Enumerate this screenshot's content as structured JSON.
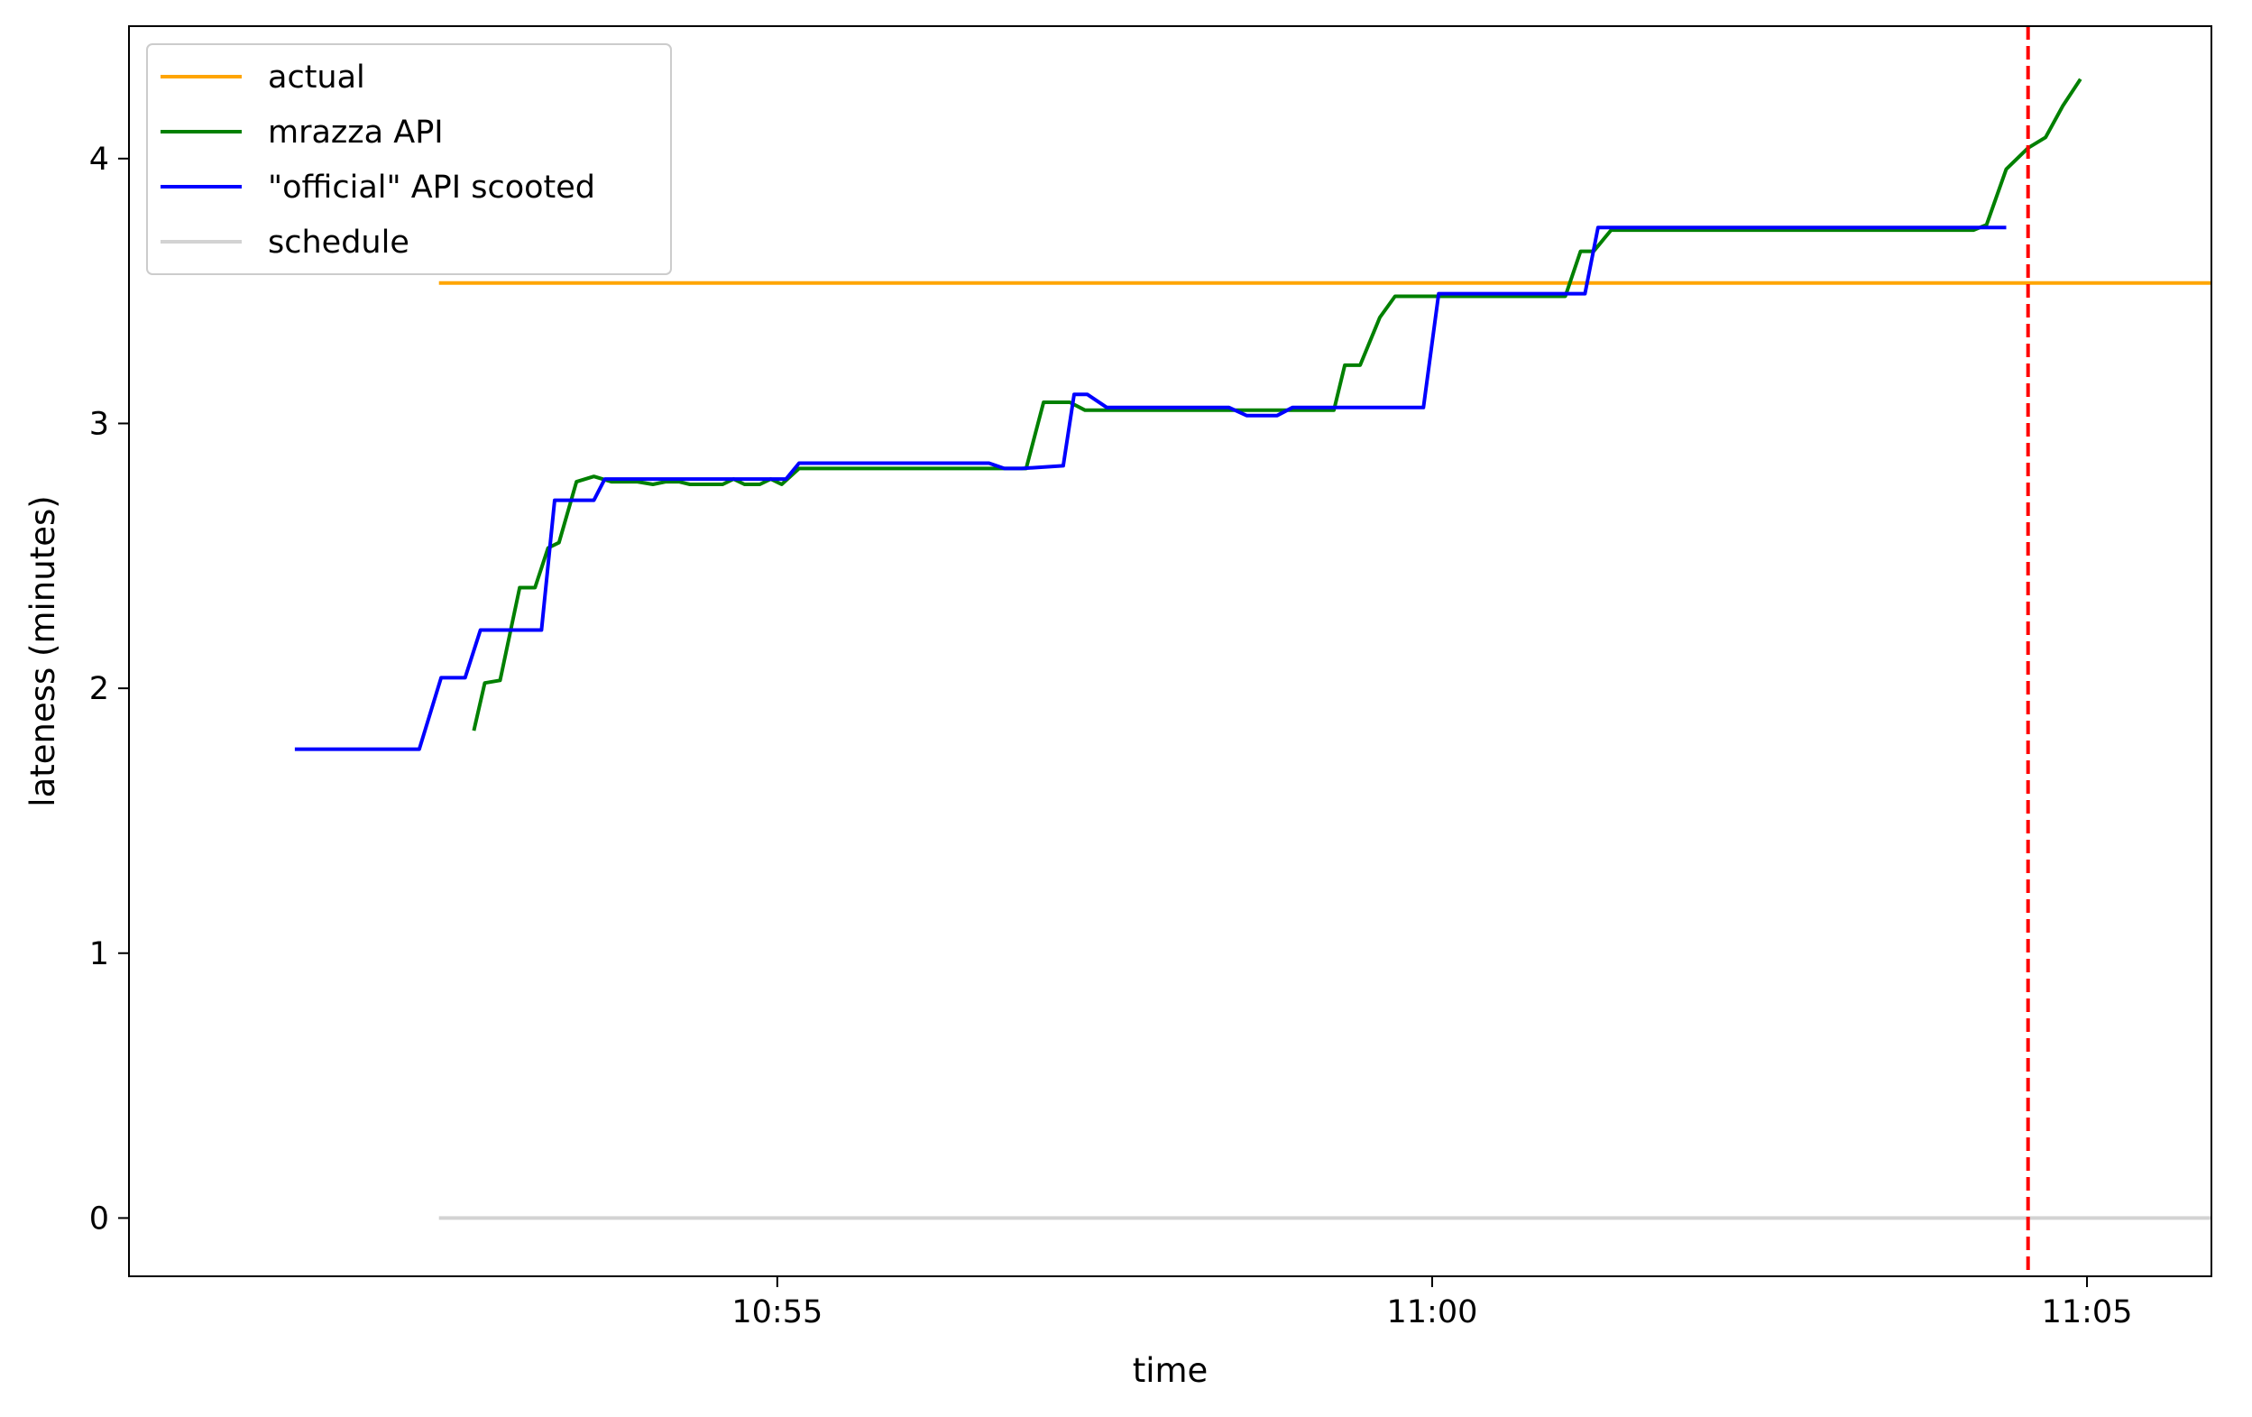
{
  "chart_data": {
    "type": "line",
    "title": "",
    "xlabel": "time",
    "ylabel": "lateness (minutes)",
    "x_unit": "clock time (HH:MM:SS)",
    "xlim": [
      "10:50:03",
      "11:05:57"
    ],
    "ylim": [
      -0.22,
      4.5
    ],
    "x_ticks": [
      {
        "value": "10:55:00",
        "label": "10:55"
      },
      {
        "value": "11:00:00",
        "label": "11:00"
      },
      {
        "value": "11:05:00",
        "label": "11:05"
      }
    ],
    "y_ticks": [
      {
        "value": 0,
        "label": "0"
      },
      {
        "value": 1,
        "label": "1"
      },
      {
        "value": 2,
        "label": "2"
      },
      {
        "value": 3,
        "label": "3"
      },
      {
        "value": 4,
        "label": "4"
      }
    ],
    "grid": false,
    "legend_position": "top-left",
    "vertical_line": {
      "x": "11:04:33",
      "color": "#ff0000",
      "style": "dashed"
    },
    "series": [
      {
        "name": "actual",
        "color": "#ffa500",
        "points": [
          [
            "10:52:25",
            3.53
          ],
          [
            "11:05:57",
            3.53
          ]
        ]
      },
      {
        "name": "mrazza API",
        "color": "#008000",
        "points": [
          [
            "10:52:41",
            1.84
          ],
          [
            "10:52:46",
            2.02
          ],
          [
            "10:52:53",
            2.03
          ],
          [
            "10:53:02",
            2.38
          ],
          [
            "10:53:09",
            2.38
          ],
          [
            "10:53:15",
            2.53
          ],
          [
            "10:53:20",
            2.55
          ],
          [
            "10:53:28",
            2.78
          ],
          [
            "10:53:36",
            2.8
          ],
          [
            "10:53:44",
            2.78
          ],
          [
            "10:53:56",
            2.78
          ],
          [
            "10:54:03",
            2.77
          ],
          [
            "10:54:09",
            2.78
          ],
          [
            "10:54:15",
            2.78
          ],
          [
            "10:54:20",
            2.77
          ],
          [
            "10:54:35",
            2.77
          ],
          [
            "10:54:40",
            2.79
          ],
          [
            "10:54:45",
            2.77
          ],
          [
            "10:54:52",
            2.77
          ],
          [
            "10:54:57",
            2.79
          ],
          [
            "10:55:02",
            2.77
          ],
          [
            "10:55:10",
            2.83
          ],
          [
            "10:56:43",
            2.83
          ],
          [
            "10:56:54",
            2.83
          ],
          [
            "10:57:02",
            3.08
          ],
          [
            "10:57:14",
            3.08
          ],
          [
            "10:57:21",
            3.05
          ],
          [
            "10:58:35",
            3.05
          ],
          [
            "10:59:15",
            3.05
          ],
          [
            "10:59:20",
            3.22
          ],
          [
            "10:59:27",
            3.22
          ],
          [
            "10:59:36",
            3.4
          ],
          [
            "10:59:43",
            3.48
          ],
          [
            "10:59:55",
            3.48
          ],
          [
            "11:00:20",
            3.48
          ],
          [
            "11:00:45",
            3.48
          ],
          [
            "11:01:01",
            3.48
          ],
          [
            "11:01:08",
            3.65
          ],
          [
            "11:01:14",
            3.65
          ],
          [
            "11:01:22",
            3.73
          ],
          [
            "11:02:00",
            3.73
          ],
          [
            "11:03:00",
            3.73
          ],
          [
            "11:04:08",
            3.73
          ],
          [
            "11:04:14",
            3.75
          ],
          [
            "11:04:23",
            3.96
          ],
          [
            "11:04:33",
            4.04
          ],
          [
            "11:04:41",
            4.08
          ],
          [
            "11:04:49",
            4.2
          ],
          [
            "11:04:57",
            4.3
          ]
        ]
      },
      {
        "name": "\"official\" API scooted",
        "color": "#0000ff",
        "points": [
          [
            "10:51:19",
            1.77
          ],
          [
            "10:52:16",
            1.77
          ],
          [
            "10:52:26",
            2.04
          ],
          [
            "10:52:37",
            2.04
          ],
          [
            "10:52:44",
            2.22
          ],
          [
            "10:53:12",
            2.22
          ],
          [
            "10:53:18",
            2.71
          ],
          [
            "10:53:36",
            2.71
          ],
          [
            "10:53:41",
            2.79
          ],
          [
            "10:54:22",
            2.79
          ],
          [
            "10:55:04",
            2.79
          ],
          [
            "10:55:10",
            2.85
          ],
          [
            "10:56:05",
            2.85
          ],
          [
            "10:56:37",
            2.85
          ],
          [
            "10:56:44",
            2.83
          ],
          [
            "10:56:52",
            2.83
          ],
          [
            "10:57:11",
            2.84
          ],
          [
            "10:57:16",
            3.11
          ],
          [
            "10:57:22",
            3.11
          ],
          [
            "10:57:31",
            3.06
          ],
          [
            "10:58:10",
            3.06
          ],
          [
            "10:58:27",
            3.06
          ],
          [
            "10:58:35",
            3.03
          ],
          [
            "10:58:49",
            3.03
          ],
          [
            "10:58:56",
            3.06
          ],
          [
            "10:59:35",
            3.06
          ],
          [
            "10:59:50",
            3.06
          ],
          [
            "10:59:56",
            3.06
          ],
          [
            "11:00:03",
            3.49
          ],
          [
            "11:00:50",
            3.49
          ],
          [
            "11:00:58",
            3.49
          ],
          [
            "11:01:10",
            3.49
          ],
          [
            "11:01:16",
            3.74
          ],
          [
            "11:02:30",
            3.74
          ],
          [
            "11:04:23",
            3.74
          ]
        ]
      },
      {
        "name": "schedule",
        "color": "#d3d3d3",
        "points": [
          [
            "10:52:25",
            0
          ],
          [
            "11:05:57",
            0
          ]
        ]
      }
    ]
  }
}
